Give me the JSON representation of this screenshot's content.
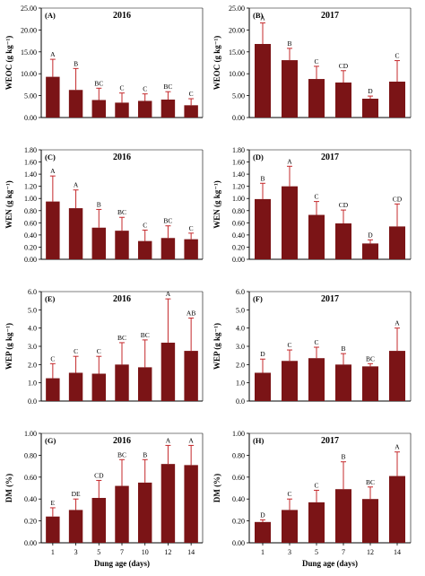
{
  "figure": {
    "xlabel": "Dung age (days)",
    "bar_color": "#7b1416",
    "error_color": "#c4282b"
  },
  "chart_data": [
    {
      "panel": "(A)",
      "title": "2016",
      "type": "bar",
      "ylabel": "WEOC (g kg⁻¹)",
      "ylim": [
        0,
        25
      ],
      "yticks": [
        "0.00",
        "5.00",
        "10.00",
        "15.00",
        "20.00",
        "25.00"
      ],
      "categories": [
        "1",
        "3",
        "5",
        "7",
        "10",
        "12",
        "14"
      ],
      "values": [
        9.3,
        6.3,
        4.0,
        3.4,
        3.8,
        4.1,
        2.8
      ],
      "errors": [
        4.0,
        4.9,
        2.7,
        2.2,
        1.6,
        1.8,
        1.5
      ],
      "letters": [
        "A",
        "B",
        "BC",
        "C",
        "C",
        "BC",
        "C"
      ],
      "show_xticks": false,
      "show_xlabel": false
    },
    {
      "panel": "(B)",
      "title": "2017",
      "type": "bar",
      "ylabel": "WEOC (g kg⁻¹)",
      "ylim": [
        0,
        25
      ],
      "yticks": [
        "0.00",
        "5.00",
        "10.00",
        "15.00",
        "20.00",
        "25.00"
      ],
      "categories": [
        "1",
        "3",
        "5",
        "7",
        "12",
        "14"
      ],
      "values": [
        16.8,
        13.1,
        8.8,
        8.0,
        4.3,
        8.2
      ],
      "errors": [
        4.8,
        2.7,
        2.9,
        2.7,
        0.6,
        4.8
      ],
      "letters": [
        "A",
        "B",
        "C",
        "CD",
        "D",
        "C"
      ],
      "show_xticks": false,
      "show_xlabel": false
    },
    {
      "panel": "(C)",
      "title": "2016",
      "type": "bar",
      "ylabel": "WEN (g kg⁻¹)",
      "ylim": [
        0,
        1.8
      ],
      "yticks": [
        "0.00",
        "0.20",
        "0.40",
        "0.60",
        "0.80",
        "1.00",
        "1.20",
        "1.40",
        "1.60",
        "1.80"
      ],
      "categories": [
        "1",
        "3",
        "5",
        "7",
        "10",
        "12",
        "14"
      ],
      "values": [
        0.95,
        0.84,
        0.52,
        0.47,
        0.3,
        0.35,
        0.33
      ],
      "errors": [
        0.42,
        0.3,
        0.3,
        0.22,
        0.18,
        0.2,
        0.1
      ],
      "letters": [
        "A",
        "A",
        "B",
        "BC",
        "C",
        "BC",
        "C"
      ],
      "show_xticks": false,
      "show_xlabel": false
    },
    {
      "panel": "(D)",
      "title": "2017",
      "type": "bar",
      "ylabel": "WEN (g kg⁻¹)",
      "ylim": [
        0,
        1.8
      ],
      "yticks": [
        "0.00",
        "0.20",
        "0.40",
        "0.60",
        "0.80",
        "1.00",
        "1.20",
        "1.40",
        "1.60",
        "1.80"
      ],
      "categories": [
        "1",
        "3",
        "5",
        "7",
        "12",
        "14"
      ],
      "values": [
        0.99,
        1.2,
        0.73,
        0.59,
        0.26,
        0.54
      ],
      "errors": [
        0.26,
        0.33,
        0.22,
        0.22,
        0.06,
        0.37
      ],
      "letters": [
        "B",
        "A",
        "C",
        "CD",
        "D",
        "CD"
      ],
      "show_xticks": false,
      "show_xlabel": false
    },
    {
      "panel": "(E)",
      "title": "2016",
      "type": "bar",
      "ylabel": "WEP (g kg⁻¹)",
      "ylim": [
        0,
        6
      ],
      "yticks": [
        "0.0",
        "1.0",
        "2.0",
        "3.0",
        "4.0",
        "5.0",
        "6.0"
      ],
      "categories": [
        "1",
        "3",
        "5",
        "7",
        "10",
        "12",
        "14"
      ],
      "values": [
        1.25,
        1.55,
        1.5,
        2.0,
        1.85,
        3.2,
        2.75
      ],
      "errors": [
        0.8,
        0.9,
        0.95,
        1.2,
        1.5,
        2.4,
        1.8
      ],
      "letters": [
        "C",
        "C",
        "C",
        "BC",
        "BC",
        "A",
        "AB"
      ],
      "show_xticks": false,
      "show_xlabel": false
    },
    {
      "panel": "(F)",
      "title": "2017",
      "type": "bar",
      "ylabel": "WEP (g kg⁻¹)",
      "ylim": [
        0,
        6
      ],
      "yticks": [
        "0.0",
        "1.0",
        "2.0",
        "3.0",
        "4.0",
        "5.0",
        "6.0"
      ],
      "categories": [
        "1",
        "3",
        "5",
        "7",
        "12",
        "14"
      ],
      "values": [
        1.55,
        2.2,
        2.35,
        2.0,
        1.9,
        2.75
      ],
      "errors": [
        0.75,
        0.6,
        0.6,
        0.6,
        0.15,
        1.25
      ],
      "letters": [
        "D",
        "C",
        "C",
        "B",
        "BC",
        "A"
      ],
      "show_xticks": false,
      "show_xlabel": false
    },
    {
      "panel": "(G)",
      "title": "2016",
      "type": "bar",
      "ylabel": "DM (%)",
      "ylim": [
        0,
        1
      ],
      "yticks": [
        "0.00",
        "0.20",
        "0.40",
        "0.60",
        "0.80",
        "1.00"
      ],
      "categories": [
        "1",
        "3",
        "5",
        "7",
        "10",
        "12",
        "14"
      ],
      "values": [
        0.24,
        0.3,
        0.41,
        0.52,
        0.55,
        0.72,
        0.71
      ],
      "errors": [
        0.08,
        0.1,
        0.16,
        0.24,
        0.21,
        0.17,
        0.18
      ],
      "letters": [
        "E",
        "DE",
        "CD",
        "BC",
        "B",
        "A",
        "A"
      ],
      "show_xticks": true,
      "show_xlabel": true
    },
    {
      "panel": "(H)",
      "title": "2017",
      "type": "bar",
      "ylabel": "DM (%)",
      "ylim": [
        0,
        1
      ],
      "yticks": [
        "0.00",
        "0.20",
        "0.40",
        "0.60",
        "0.80",
        "1.00"
      ],
      "categories": [
        "1",
        "3",
        "5",
        "7",
        "12",
        "14"
      ],
      "values": [
        0.19,
        0.3,
        0.37,
        0.49,
        0.4,
        0.61
      ],
      "errors": [
        0.02,
        0.1,
        0.11,
        0.25,
        0.11,
        0.22
      ],
      "letters": [
        "D",
        "C",
        "C",
        "B",
        "BC",
        "A"
      ],
      "show_xticks": true,
      "show_xlabel": true
    }
  ]
}
